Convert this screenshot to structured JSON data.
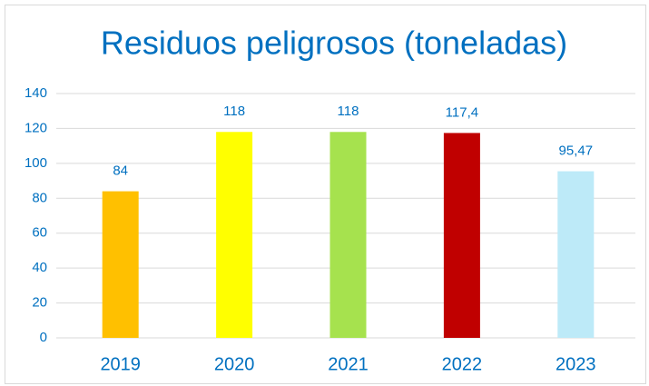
{
  "chart_data": {
    "type": "bar",
    "title": "Residuos peligrosos (toneladas)",
    "categories": [
      "2019",
      "2020",
      "2021",
      "2022",
      "2023"
    ],
    "values": [
      84,
      118,
      118,
      117.4,
      95.47
    ],
    "value_labels": [
      "84",
      "118",
      "118",
      "117,4",
      "95,47"
    ],
    "colors": [
      "#ffc000",
      "#ffff00",
      "#a6e24e",
      "#c00000",
      "#bdeaf8"
    ],
    "ylim": [
      0,
      140
    ],
    "yticks": [
      0,
      20,
      40,
      60,
      80,
      100,
      120,
      140
    ],
    "grid": true
  }
}
